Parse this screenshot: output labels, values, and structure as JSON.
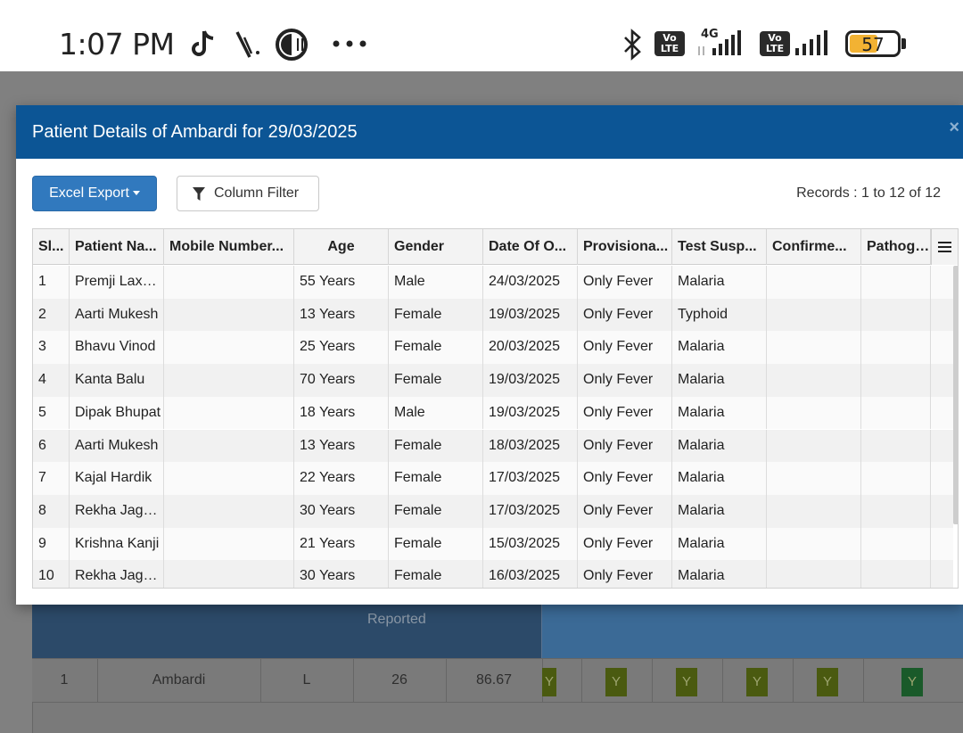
{
  "status_bar": {
    "time": "1:07 PM",
    "icons": [
      "tiktok-icon",
      "vpn-icon",
      "app-icon",
      "more-dots-icon",
      "bluetooth-icon",
      "volte-icon",
      "signal-icon",
      "battery-icon"
    ],
    "volte_label_top": "Vo",
    "volte_label_bottom": "LTE",
    "network_type": "4G",
    "battery_percent": "57",
    "battery_level": 0.57,
    "battery_color": "#f2b233"
  },
  "modal": {
    "title": "Patient Details of Ambardi for 29/03/2025",
    "close_symbol": "×",
    "header_color": "#0c5595",
    "excel_export_label": "Excel Export",
    "column_filter_label": "Column Filter",
    "records_text": "Records : 1 to 12 of 12"
  },
  "grid": {
    "columns": [
      "Sl...",
      "Patient Na...",
      "Mobile Number...",
      "Age",
      "Gender",
      "Date Of O...",
      "Provisiona...",
      "Test Susp...",
      "Confirme...",
      "Pathoge..."
    ],
    "rows": [
      [
        "1",
        "Premji Laxman",
        "",
        "55 Years",
        "Male",
        "24/03/2025",
        "Only Fever",
        "Malaria",
        "",
        ""
      ],
      [
        "2",
        "Aarti Mukesh",
        "",
        "13 Years",
        "Female",
        "19/03/2025",
        "Only Fever",
        "Typhoid",
        "",
        ""
      ],
      [
        "3",
        "Bhavu Vinod",
        "",
        "25 Years",
        "Female",
        "20/03/2025",
        "Only Fever",
        "Malaria",
        "",
        ""
      ],
      [
        "4",
        "Kanta Balu",
        "",
        "70 Years",
        "Female",
        "19/03/2025",
        "Only Fever",
        "Malaria",
        "",
        ""
      ],
      [
        "5",
        "Dipak Bhupat",
        "",
        "18 Years",
        "Male",
        "19/03/2025",
        "Only Fever",
        "Malaria",
        "",
        ""
      ],
      [
        "6",
        "Aarti Mukesh",
        "",
        "13 Years",
        "Female",
        "18/03/2025",
        "Only Fever",
        "Malaria",
        "",
        ""
      ],
      [
        "7",
        "Kajal Hardik",
        "",
        "22 Years",
        "Female",
        "17/03/2025",
        "Only Fever",
        "Malaria",
        "",
        ""
      ],
      [
        "8",
        "Rekha Jagdish",
        "",
        "30 Years",
        "Female",
        "17/03/2025",
        "Only Fever",
        "Malaria",
        "",
        ""
      ],
      [
        "9",
        "Krishna Kanji",
        "",
        "21 Years",
        "Female",
        "15/03/2025",
        "Only Fever",
        "Malaria",
        "",
        ""
      ],
      [
        "10",
        "Rekha Jagdish",
        "",
        "30 Years",
        "Female",
        "16/03/2025",
        "Only Fever",
        "Malaria",
        "",
        ""
      ]
    ]
  },
  "background_table": {
    "header_text": "Reported",
    "row": {
      "sl": "1",
      "name": "Ambardi",
      "type": "L",
      "count": "26",
      "percent": "86.67",
      "flags": [
        "Y",
        "Y",
        "Y",
        "Y",
        "Y",
        "Y"
      ]
    }
  }
}
